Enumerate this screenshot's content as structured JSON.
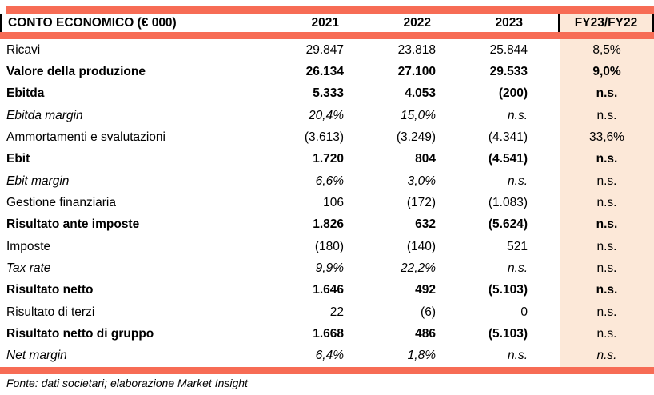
{
  "colors": {
    "accent_orange": "#F76C55",
    "highlight_peach": "#FCE8D8",
    "text": "#000000"
  },
  "table": {
    "title": "CONTO ECONOMICO (€ 000)",
    "columns": [
      "2021",
      "2022",
      "2023",
      "FY23/FY22"
    ],
    "rows": [
      {
        "label": "Ricavi",
        "values": [
          "29.847",
          "23.818",
          "25.844"
        ],
        "fy": "8,5%",
        "style": "regular",
        "fy_style": "regular"
      },
      {
        "label": "Valore della produzione",
        "values": [
          "26.134",
          "27.100",
          "29.533"
        ],
        "fy": "9,0%",
        "style": "bold",
        "fy_style": "bold"
      },
      {
        "label": "Ebitda",
        "values": [
          "5.333",
          "4.053",
          "(200)"
        ],
        "fy": "n.s.",
        "style": "bold",
        "fy_style": "bold"
      },
      {
        "label": "Ebitda margin",
        "values": [
          "20,4%",
          "15,0%",
          "n.s."
        ],
        "fy": "n.s.",
        "style": "italic",
        "fy_style": "regular"
      },
      {
        "label": "Ammortamenti e svalutazioni",
        "values": [
          "(3.613)",
          "(3.249)",
          "(4.341)"
        ],
        "fy": "33,6%",
        "style": "regular",
        "fy_style": "regular"
      },
      {
        "label": "Ebit",
        "values": [
          "1.720",
          "804",
          "(4.541)"
        ],
        "fy": "n.s.",
        "style": "bold",
        "fy_style": "bold"
      },
      {
        "label": "Ebit margin",
        "values": [
          "6,6%",
          "3,0%",
          "n.s."
        ],
        "fy": "n.s.",
        "style": "italic",
        "fy_style": "regular"
      },
      {
        "label": "Gestione finanziaria",
        "values": [
          "106",
          "(172)",
          "(1.083)"
        ],
        "fy": "n.s.",
        "style": "regular",
        "fy_style": "regular"
      },
      {
        "label": "Risultato ante imposte",
        "values": [
          "1.826",
          "632",
          "(5.624)"
        ],
        "fy": "n.s.",
        "style": "bold",
        "fy_style": "bold"
      },
      {
        "label": "Imposte",
        "values": [
          "(180)",
          "(140)",
          "521"
        ],
        "fy": "n.s.",
        "style": "regular",
        "fy_style": "regular"
      },
      {
        "label": "Tax rate",
        "values": [
          "9,9%",
          "22,2%",
          "n.s."
        ],
        "fy": "n.s.",
        "style": "italic",
        "fy_style": "regular"
      },
      {
        "label": "Risultato netto",
        "values": [
          "1.646",
          "492",
          "(5.103)"
        ],
        "fy": "n.s.",
        "style": "bold",
        "fy_style": "bold"
      },
      {
        "label": "Risultato di terzi",
        "values": [
          "22",
          "(6)",
          "0"
        ],
        "fy": "n.s.",
        "style": "regular",
        "fy_style": "regular"
      },
      {
        "label": "Risultato netto di gruppo",
        "values": [
          "1.668",
          "486",
          "(5.103)"
        ],
        "fy": "n.s.",
        "style": "bold",
        "fy_style": "regular"
      },
      {
        "label": "Net margin",
        "values": [
          "6,4%",
          "1,8%",
          "n.s."
        ],
        "fy": "n.s.",
        "style": "italic",
        "fy_style": "italic"
      }
    ]
  },
  "footer": {
    "source_note": "Fonte: dati societari; elaborazione Market Insight"
  }
}
